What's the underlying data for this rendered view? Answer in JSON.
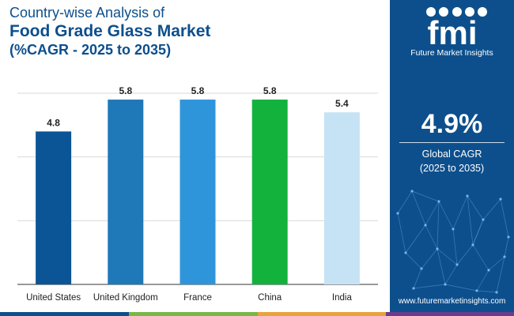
{
  "title": {
    "line1": "Country-wise Analysis of",
    "line2": "Food Grade Glass Market",
    "line3": "(%CAGR - 2025 to 2035)"
  },
  "chart_data": {
    "type": "bar",
    "categories": [
      "United States",
      "United Kingdom",
      "France",
      "China",
      "India"
    ],
    "values": [
      4.8,
      5.8,
      5.8,
      5.8,
      5.4
    ],
    "value_labels": [
      "4.8",
      "5.8",
      "5.8",
      "5.8",
      "5.4"
    ],
    "bar_colors": [
      "#0b5597",
      "#1f78b8",
      "#2f95da",
      "#13b23d",
      "#c6e2f5"
    ],
    "ylim": [
      0,
      6
    ],
    "grid": true,
    "legend": "none"
  },
  "side_panel": {
    "logo_text": "fmi",
    "logo_caption": "Future Market Insights",
    "cagr_value": "4.9%",
    "cagr_label_line1": "Global CAGR",
    "cagr_label_line2": "(2025 to 2035)",
    "website": "www.futuremarketinsights.com"
  },
  "colors": {
    "title": "#0d4f8c",
    "panel_bg": "#0d4f8c",
    "grid": "#d9d9d9",
    "strip": [
      "#0d4f8c",
      "#7ab648",
      "#e8a33d",
      "#6d3b8c"
    ]
  }
}
